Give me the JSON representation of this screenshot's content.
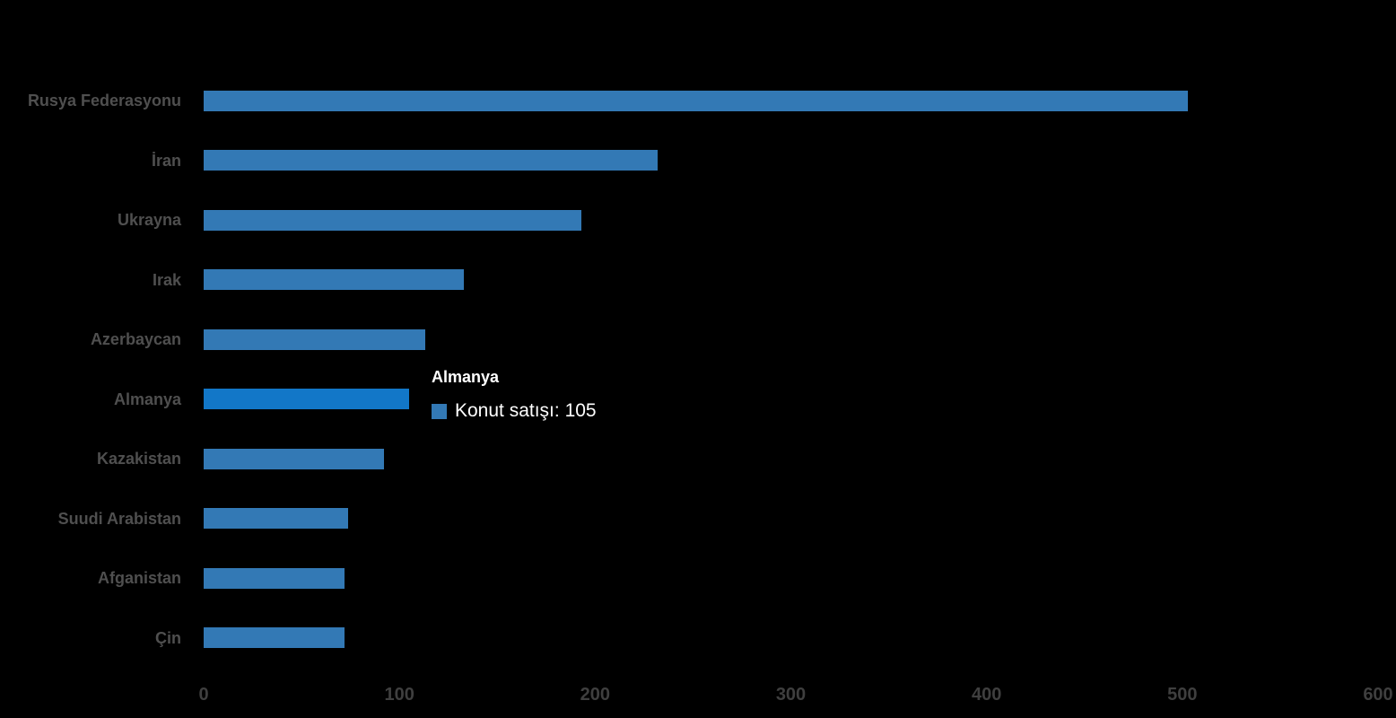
{
  "colors": {
    "background": "#000000",
    "bar": "#3379b5",
    "bar_highlight": "#1277c8",
    "category_label": "#4f4f4f",
    "axis_label": "#3f3f3f",
    "tooltip_text": "#ffffff"
  },
  "tooltip": {
    "title": "Almanya",
    "text": "Konut satışı: 105",
    "swatch_icon": "series-color-square"
  },
  "chart_data": {
    "type": "bar",
    "orientation": "horizontal",
    "title": "",
    "xlabel": "",
    "ylabel": "",
    "series_name": "Konut satışı",
    "categories": [
      "Rusya Federasyonu",
      "İran",
      "Ukrayna",
      "Irak",
      "Azerbaycan",
      "Almanya",
      "Kazakistan",
      "Suudi Arabistan",
      "Afganistan",
      "Çin"
    ],
    "values": [
      503,
      232,
      193,
      133,
      113,
      105,
      92,
      74,
      72,
      72
    ],
    "xlim": [
      0,
      600
    ],
    "x_ticks": [
      0,
      100,
      200,
      300,
      400,
      500,
      600
    ],
    "grid": false,
    "legend_position": "none",
    "highlighted_category": "Almanya",
    "bar_color": "#3379b5",
    "highlight_color": "#1277c8"
  }
}
